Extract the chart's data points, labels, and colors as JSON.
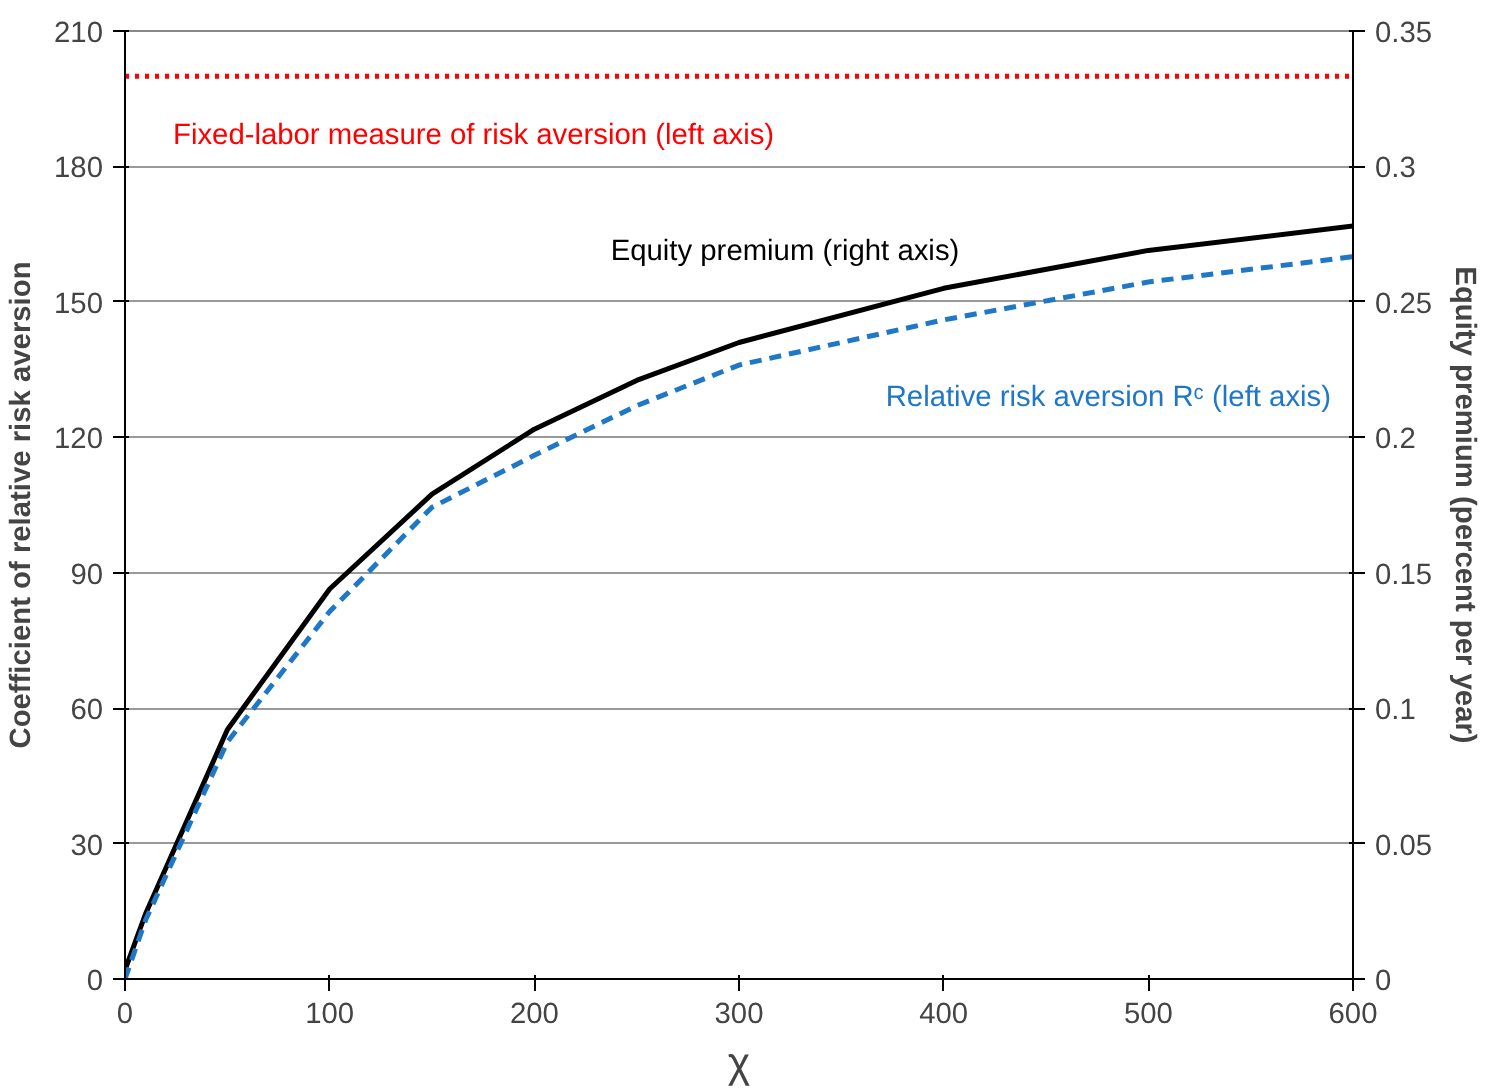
{
  "chart_data": {
    "type": "line",
    "xlabel": "χ",
    "ylabel": "Coefficient of relative risk aversion",
    "y2label": "Equity premium (percent per year)",
    "xlim": [
      0,
      600
    ],
    "xticks": [
      0,
      100,
      200,
      300,
      400,
      500,
      600
    ],
    "ylim": [
      0,
      210
    ],
    "yticks": [
      0,
      30,
      60,
      90,
      120,
      150,
      180,
      210
    ],
    "y2lim": [
      0,
      0.35
    ],
    "y2ticks": [
      0,
      0.05,
      0.1,
      0.15,
      0.2,
      0.25,
      0.3,
      0.35
    ],
    "grid": "y",
    "legend": false,
    "series": [
      {
        "name": "Fixed-labor measure of risk aversion (left axis)",
        "color": "#ff0000",
        "line_style": "dotted",
        "x": [
          0,
          600
        ],
        "values": [
          200,
          200
        ]
      },
      {
        "name": "Equity premium (right axis)",
        "color": "#000000",
        "line_style": "solid",
        "axis": "y2",
        "x": [
          0,
          10,
          50,
          100,
          150,
          200,
          250,
          300,
          400,
          500,
          600
        ],
        "values": [
          0.0033,
          0.024,
          0.092,
          0.144,
          0.179,
          0.203,
          0.221,
          0.235,
          0.255,
          0.269,
          0.278
        ]
      },
      {
        "name": "Relative risk aversion Rᶜ (left axis)",
        "color": "#1f77c8",
        "line_style": "dashed",
        "x": [
          0,
          10,
          50,
          100,
          150,
          200,
          250,
          300,
          400,
          500,
          600
        ],
        "values": [
          0,
          13,
          52.5,
          81.4,
          104.5,
          116,
          127,
          136,
          146,
          154.4,
          160
        ]
      }
    ]
  }
}
